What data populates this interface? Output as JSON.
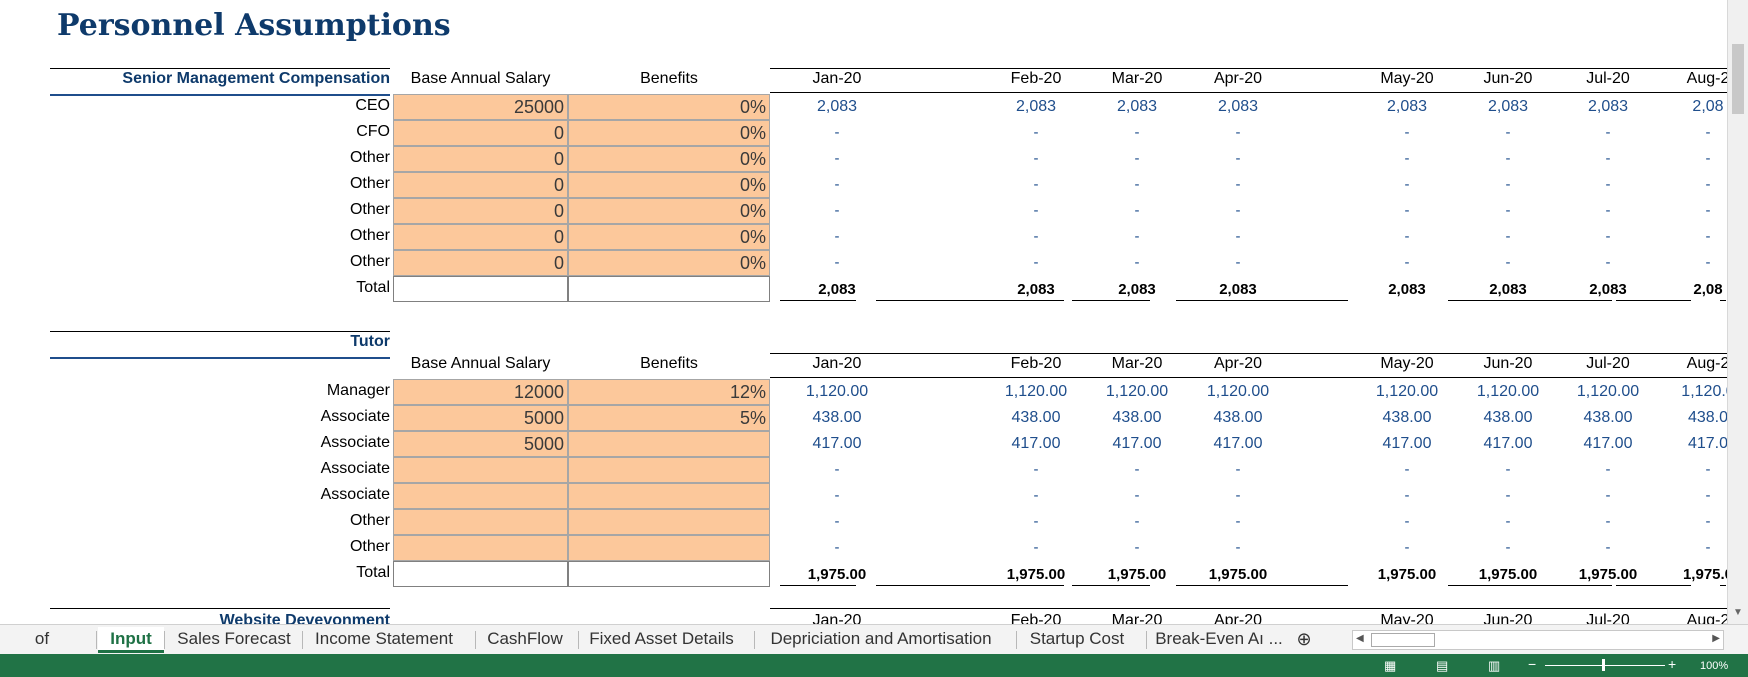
{
  "title": "Personnel Assumptions",
  "months": [
    "Jan-20",
    "Feb-20",
    "Mar-20",
    "Apr-20",
    "May-20",
    "Jun-20",
    "Jul-20",
    "Aug-20"
  ],
  "months_visible": [
    "Jan-20",
    "Feb-20",
    "Mar-20",
    "Apr-20",
    "May-20",
    "Jun-20",
    "Jul-20",
    "Aug-2"
  ],
  "col_headers": {
    "salary": "Base Annual Salary",
    "benefits": "Benefits"
  },
  "senior": {
    "title": "Senior Management Compensation",
    "rows": [
      {
        "label": "CEO",
        "salary": "25000",
        "benefits": "0%",
        "values": [
          "2,083",
          "2,083",
          "2,083",
          "2,083",
          "2,083",
          "2,083",
          "2,083",
          "2,08"
        ]
      },
      {
        "label": "CFO",
        "salary": "0",
        "benefits": "0%",
        "values": [
          "-",
          "-",
          "-",
          "-",
          "-",
          "-",
          "-",
          "-"
        ]
      },
      {
        "label": "Other",
        "salary": "0",
        "benefits": "0%",
        "values": [
          "-",
          "-",
          "-",
          "-",
          "-",
          "-",
          "-",
          "-"
        ]
      },
      {
        "label": "Other",
        "salary": "0",
        "benefits": "0%",
        "values": [
          "-",
          "-",
          "-",
          "-",
          "-",
          "-",
          "-",
          "-"
        ]
      },
      {
        "label": "Other",
        "salary": "0",
        "benefits": "0%",
        "values": [
          "-",
          "-",
          "-",
          "-",
          "-",
          "-",
          "-",
          "-"
        ]
      },
      {
        "label": "Other",
        "salary": "0",
        "benefits": "0%",
        "values": [
          "-",
          "-",
          "-",
          "-",
          "-",
          "-",
          "-",
          "-"
        ]
      },
      {
        "label": "Other",
        "salary": "0",
        "benefits": "0%",
        "values": [
          "-",
          "-",
          "-",
          "-",
          "-",
          "-",
          "-",
          "-"
        ]
      }
    ],
    "total_label": "Total",
    "totals": [
      "2,083",
      "2,083",
      "2,083",
      "2,083",
      "2,083",
      "2,083",
      "2,083",
      "2,08"
    ]
  },
  "tutor": {
    "title": "Tutor",
    "rows": [
      {
        "label": "Manager",
        "salary": "12000",
        "benefits": "12%",
        "values": [
          "1,120.00",
          "1,120.00",
          "1,120.00",
          "1,120.00",
          "1,120.00",
          "1,120.00",
          "1,120.00",
          "1,120.0"
        ]
      },
      {
        "label": "Associate",
        "salary": "5000",
        "benefits": "5%",
        "values": [
          "438.00",
          "438.00",
          "438.00",
          "438.00",
          "438.00",
          "438.00",
          "438.00",
          "438.0"
        ]
      },
      {
        "label": "Associate",
        "salary": "5000",
        "benefits": "",
        "values": [
          "417.00",
          "417.00",
          "417.00",
          "417.00",
          "417.00",
          "417.00",
          "417.00",
          "417.0"
        ]
      },
      {
        "label": "Associate",
        "salary": "",
        "benefits": "",
        "values": [
          "-",
          "-",
          "-",
          "-",
          "-",
          "-",
          "-",
          "-"
        ]
      },
      {
        "label": "Associate",
        "salary": "",
        "benefits": "",
        "values": [
          "-",
          "-",
          "-",
          "-",
          "-",
          "-",
          "-",
          "-"
        ]
      },
      {
        "label": "Other",
        "salary": "",
        "benefits": "",
        "values": [
          "-",
          "-",
          "-",
          "-",
          "-",
          "-",
          "-",
          "-"
        ]
      },
      {
        "label": "Other",
        "salary": "",
        "benefits": "",
        "values": [
          "-",
          "-",
          "-",
          "-",
          "-",
          "-",
          "-",
          "-"
        ]
      }
    ],
    "total_label": "Total",
    "totals": [
      "1,975.00",
      "1,975.00",
      "1,975.00",
      "1,975.00",
      "1,975.00",
      "1,975.00",
      "1,975.00",
      "1,975.0"
    ]
  },
  "website": {
    "title": "Website Devevonment",
    "months_partial": [
      "Jan-20",
      "Feb-20",
      "Mar-20",
      "Apr-20",
      "May-20",
      "Jun-20",
      "Jul-20",
      "Aug-2"
    ]
  },
  "tabs": [
    {
      "label": "of Contents",
      "active": false
    },
    {
      "label": "Input",
      "active": true
    },
    {
      "label": "Sales Forecast",
      "active": false
    },
    {
      "label": "Income Statement",
      "active": false
    },
    {
      "label": "CashFlow",
      "active": false
    },
    {
      "label": "Fixed Asset Details",
      "active": false
    },
    {
      "label": "Depriciation and Amortisation",
      "active": false
    },
    {
      "label": "Startup Cost",
      "active": false
    },
    {
      "label": "Break-Even Aı ...",
      "active": false
    }
  ],
  "status": {
    "zoom": "100%"
  },
  "colors": {
    "input_fill": "#fcc89b",
    "title": "#0e3a6b",
    "value_text": "#1f4e8c",
    "active_tab": "#1e7145",
    "status_bar": "#217346"
  }
}
